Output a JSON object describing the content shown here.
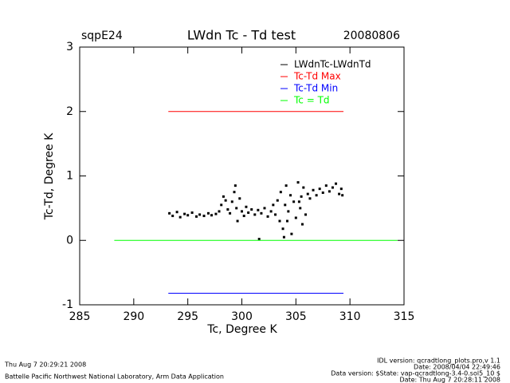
{
  "chart_data": {
    "type": "scatter",
    "title": "LWdn Tc - Td test",
    "site": "sqpE24",
    "date": "20080806",
    "x_label": "Tc, Degree K",
    "y_label": "Tc-Td, Degree K",
    "xlim": [
      285,
      315
    ],
    "xticks": [
      285,
      290,
      295,
      300,
      305,
      310,
      315
    ],
    "ylim": [
      -1,
      3
    ],
    "yticks": [
      -1,
      0,
      1,
      2,
      3
    ],
    "series": [
      {
        "name": "LWdnTc-LWdnTd",
        "color": "#000000",
        "mode": "markers",
        "x": [
          293.3,
          293.6,
          294.0,
          294.3,
          294.7,
          295.0,
          295.4,
          295.8,
          296.1,
          296.5,
          296.9,
          297.2,
          297.6,
          297.9,
          298.1,
          298.3,
          298.5,
          298.7,
          298.9,
          299.1,
          299.3,
          299.4,
          299.5,
          299.6,
          299.8,
          300.0,
          300.2,
          300.4,
          300.6,
          300.9,
          301.2,
          301.5,
          301.6,
          301.8,
          302.1,
          302.4,
          302.7,
          302.9,
          303.1,
          303.3,
          303.5,
          303.6,
          303.8,
          304.0,
          304.1,
          304.3,
          304.5,
          304.6,
          304.8,
          305.0,
          305.2,
          305.4,
          305.5,
          305.7,
          305.9,
          306.1,
          306.3,
          306.6,
          306.9,
          307.2,
          307.5,
          307.8,
          308.1,
          308.4,
          308.7,
          309.0,
          309.2,
          309.3,
          305.3,
          304.2,
          303.9,
          305.6
        ],
        "values": [
          0.42,
          0.38,
          0.44,
          0.36,
          0.41,
          0.39,
          0.43,
          0.37,
          0.4,
          0.38,
          0.42,
          0.39,
          0.41,
          0.45,
          0.55,
          0.68,
          0.62,
          0.48,
          0.42,
          0.6,
          0.75,
          0.85,
          0.5,
          0.3,
          0.65,
          0.45,
          0.38,
          0.52,
          0.43,
          0.48,
          0.4,
          0.47,
          0.02,
          0.42,
          0.5,
          0.37,
          0.45,
          0.55,
          0.4,
          0.62,
          0.3,
          0.75,
          0.18,
          0.55,
          0.85,
          0.45,
          0.7,
          0.1,
          0.6,
          0.35,
          0.9,
          0.5,
          0.68,
          0.82,
          0.4,
          0.72,
          0.65,
          0.78,
          0.7,
          0.8,
          0.74,
          0.85,
          0.76,
          0.82,
          0.88,
          0.72,
          0.8,
          0.7,
          0.6,
          0.3,
          0.05,
          0.25
        ]
      },
      {
        "name": "Tc-Td Max",
        "color": "#ff0000",
        "mode": "line",
        "x": [
          293.2,
          309.4
        ],
        "values": [
          2,
          2
        ]
      },
      {
        "name": "Tc-Td Min",
        "color": "#0000ff",
        "mode": "line",
        "x": [
          293.2,
          309.4
        ],
        "values": [
          -0.82,
          -0.82
        ]
      },
      {
        "name": "Tc = Td",
        "color": "#00ff00",
        "mode": "line",
        "x": [
          288.2,
          314.4
        ],
        "values": [
          0,
          0
        ]
      }
    ]
  },
  "footer": {
    "timestamp": "Thu Aug  7 20:29:21 2008",
    "institution": "Battelle Pacific Northwest National Laboratory, Arm Data Application",
    "idl_version": "IDL version: qcradtlong_plots.pro,v 1.1",
    "idl_date": "Date: 2008/04/04 22:49:46",
    "data_version": "Data version: $State: vap-qcradtlong-3.4-0.sol5_10 $",
    "data_date": "Date: Thu Aug  7 20:28:11 2008"
  }
}
